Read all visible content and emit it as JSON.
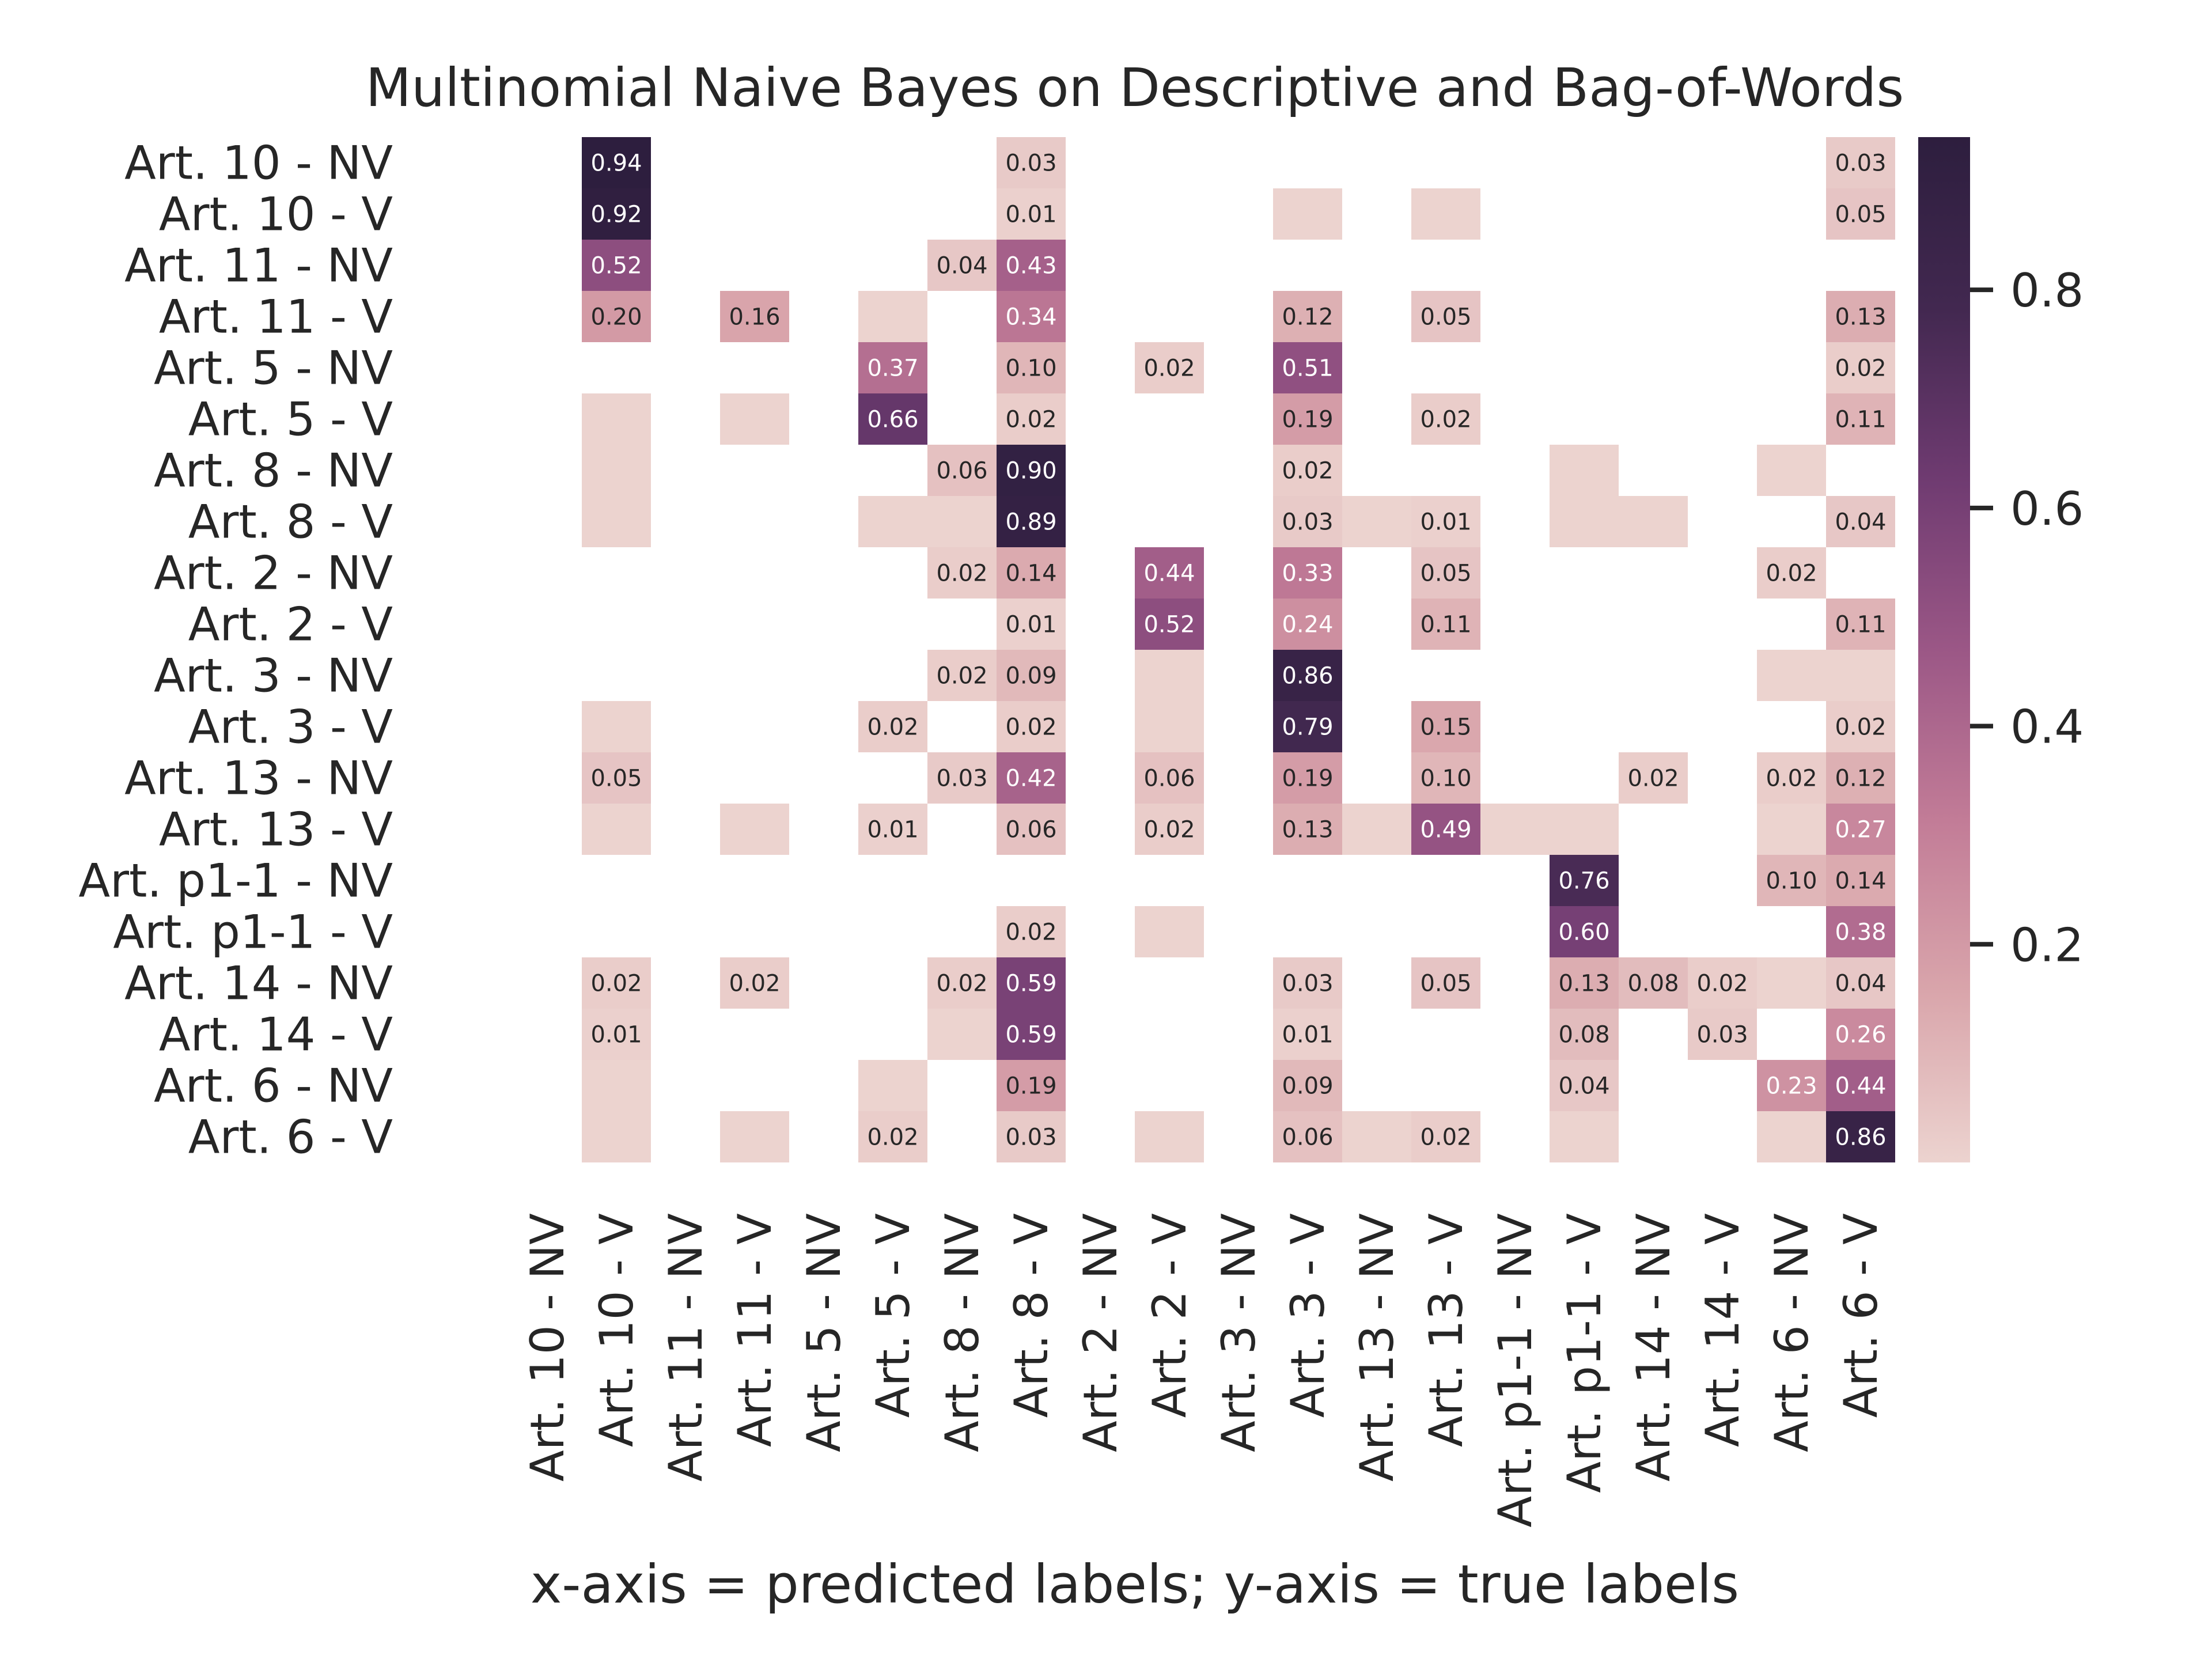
{
  "chart_data": {
    "type": "heatmap",
    "title": "Multinomial Naive Bayes on Descriptive and Bag-of-Words",
    "xlabel": "x-axis = predicted labels; y-axis = true labels",
    "ylabel": "",
    "x_categories": [
      "Art. 10 - NV",
      "Art. 10 - V",
      "Art. 11 - NV",
      "Art. 11 - V",
      "Art. 5 - NV",
      "Art. 5 - V",
      "Art. 8 - NV",
      "Art. 8 - V",
      "Art. 2 - NV",
      "Art. 2 - V",
      "Art. 3 - NV",
      "Art. 3 - V",
      "Art. 13 - NV",
      "Art. 13 - V",
      "Art. p1-1 - NV",
      "Art. p1-1 - V",
      "Art. 14 - NV",
      "Art. 14 - V",
      "Art. 6 - NV",
      "Art. 6 - V"
    ],
    "y_categories": [
      "Art. 10 - NV",
      "Art. 10 - V",
      "Art. 11 - NV",
      "Art. 11 - V",
      "Art. 5 - NV",
      "Art. 5 - V",
      "Art. 8 - NV",
      "Art. 8 - V",
      "Art. 2 - NV",
      "Art. 2 - V",
      "Art. 3 - NV",
      "Art. 3 - V",
      "Art. 13 - NV",
      "Art. 13 - V",
      "Art. p1-1 - NV",
      "Art. p1-1 - V",
      "Art. 14 - NV",
      "Art. 14 - V",
      "Art. 6 - NV",
      "Art. 6 - V"
    ],
    "cells": [
      {
        "row": 0,
        "col": 1,
        "value": 0.94,
        "label": "0.94"
      },
      {
        "row": 0,
        "col": 7,
        "value": 0.03,
        "label": "0.03"
      },
      {
        "row": 0,
        "col": 19,
        "value": 0.03,
        "label": "0.03"
      },
      {
        "row": 1,
        "col": 1,
        "value": 0.92,
        "label": "0.92"
      },
      {
        "row": 1,
        "col": 7,
        "value": 0.01,
        "label": "0.01"
      },
      {
        "row": 1,
        "col": 11,
        "value": 0.0
      },
      {
        "row": 1,
        "col": 13,
        "value": 0.0
      },
      {
        "row": 1,
        "col": 19,
        "value": 0.05,
        "label": "0.05"
      },
      {
        "row": 2,
        "col": 1,
        "value": 0.52,
        "label": "0.52"
      },
      {
        "row": 2,
        "col": 6,
        "value": 0.04,
        "label": "0.04"
      },
      {
        "row": 2,
        "col": 7,
        "value": 0.43,
        "label": "0.43"
      },
      {
        "row": 3,
        "col": 1,
        "value": 0.2,
        "label": "0.20"
      },
      {
        "row": 3,
        "col": 3,
        "value": 0.16,
        "label": "0.16"
      },
      {
        "row": 3,
        "col": 5,
        "value": 0.0
      },
      {
        "row": 3,
        "col": 7,
        "value": 0.34,
        "label": "0.34"
      },
      {
        "row": 3,
        "col": 11,
        "value": 0.12,
        "label": "0.12"
      },
      {
        "row": 3,
        "col": 13,
        "value": 0.05,
        "label": "0.05"
      },
      {
        "row": 3,
        "col": 19,
        "value": 0.13,
        "label": "0.13"
      },
      {
        "row": 4,
        "col": 5,
        "value": 0.37,
        "label": "0.37"
      },
      {
        "row": 4,
        "col": 7,
        "value": 0.1,
        "label": "0.10"
      },
      {
        "row": 4,
        "col": 9,
        "value": 0.02,
        "label": "0.02"
      },
      {
        "row": 4,
        "col": 11,
        "value": 0.51,
        "label": "0.51"
      },
      {
        "row": 4,
        "col": 19,
        "value": 0.02,
        "label": "0.02"
      },
      {
        "row": 5,
        "col": 1,
        "value": 0.0
      },
      {
        "row": 5,
        "col": 3,
        "value": 0.0
      },
      {
        "row": 5,
        "col": 5,
        "value": 0.66,
        "label": "0.66"
      },
      {
        "row": 5,
        "col": 7,
        "value": 0.02,
        "label": "0.02"
      },
      {
        "row": 5,
        "col": 11,
        "value": 0.19,
        "label": "0.19"
      },
      {
        "row": 5,
        "col": 13,
        "value": 0.02,
        "label": "0.02"
      },
      {
        "row": 5,
        "col": 19,
        "value": 0.11,
        "label": "0.11"
      },
      {
        "row": 6,
        "col": 1,
        "value": 0.0
      },
      {
        "row": 6,
        "col": 6,
        "value": 0.06,
        "label": "0.06"
      },
      {
        "row": 6,
        "col": 7,
        "value": 0.9,
        "label": "0.90"
      },
      {
        "row": 6,
        "col": 11,
        "value": 0.02,
        "label": "0.02"
      },
      {
        "row": 6,
        "col": 15,
        "value": 0.0
      },
      {
        "row": 6,
        "col": 18,
        "value": 0.0
      },
      {
        "row": 7,
        "col": 1,
        "value": 0.0
      },
      {
        "row": 7,
        "col": 5,
        "value": 0.0
      },
      {
        "row": 7,
        "col": 6,
        "value": 0.0
      },
      {
        "row": 7,
        "col": 7,
        "value": 0.89,
        "label": "0.89"
      },
      {
        "row": 7,
        "col": 11,
        "value": 0.03,
        "label": "0.03"
      },
      {
        "row": 7,
        "col": 12,
        "value": 0.0
      },
      {
        "row": 7,
        "col": 13,
        "value": 0.01,
        "label": "0.01"
      },
      {
        "row": 7,
        "col": 15,
        "value": 0.0
      },
      {
        "row": 7,
        "col": 16,
        "value": 0.0
      },
      {
        "row": 7,
        "col": 19,
        "value": 0.04,
        "label": "0.04"
      },
      {
        "row": 8,
        "col": 6,
        "value": 0.02,
        "label": "0.02"
      },
      {
        "row": 8,
        "col": 7,
        "value": 0.14,
        "label": "0.14"
      },
      {
        "row": 8,
        "col": 9,
        "value": 0.44,
        "label": "0.44"
      },
      {
        "row": 8,
        "col": 11,
        "value": 0.33,
        "label": "0.33"
      },
      {
        "row": 8,
        "col": 13,
        "value": 0.05,
        "label": "0.05"
      },
      {
        "row": 8,
        "col": 18,
        "value": 0.02,
        "label": "0.02"
      },
      {
        "row": 9,
        "col": 7,
        "value": 0.01,
        "label": "0.01"
      },
      {
        "row": 9,
        "col": 9,
        "value": 0.52,
        "label": "0.52"
      },
      {
        "row": 9,
        "col": 11,
        "value": 0.24,
        "label": "0.24"
      },
      {
        "row": 9,
        "col": 13,
        "value": 0.11,
        "label": "0.11"
      },
      {
        "row": 9,
        "col": 19,
        "value": 0.11,
        "label": "0.11"
      },
      {
        "row": 10,
        "col": 6,
        "value": 0.02,
        "label": "0.02"
      },
      {
        "row": 10,
        "col": 7,
        "value": 0.09,
        "label": "0.09"
      },
      {
        "row": 10,
        "col": 9,
        "value": 0.0
      },
      {
        "row": 10,
        "col": 11,
        "value": 0.86,
        "label": "0.86"
      },
      {
        "row": 10,
        "col": 18,
        "value": 0.0
      },
      {
        "row": 10,
        "col": 19,
        "value": 0.0
      },
      {
        "row": 11,
        "col": 1,
        "value": 0.0
      },
      {
        "row": 11,
        "col": 5,
        "value": 0.02,
        "label": "0.02"
      },
      {
        "row": 11,
        "col": 7,
        "value": 0.02,
        "label": "0.02"
      },
      {
        "row": 11,
        "col": 9,
        "value": 0.0
      },
      {
        "row": 11,
        "col": 11,
        "value": 0.79,
        "label": "0.79"
      },
      {
        "row": 11,
        "col": 13,
        "value": 0.15,
        "label": "0.15"
      },
      {
        "row": 11,
        "col": 19,
        "value": 0.02,
        "label": "0.02"
      },
      {
        "row": 12,
        "col": 1,
        "value": 0.05,
        "label": "0.05"
      },
      {
        "row": 12,
        "col": 6,
        "value": 0.03,
        "label": "0.03"
      },
      {
        "row": 12,
        "col": 7,
        "value": 0.42,
        "label": "0.42"
      },
      {
        "row": 12,
        "col": 9,
        "value": 0.06,
        "label": "0.06"
      },
      {
        "row": 12,
        "col": 11,
        "value": 0.19,
        "label": "0.19"
      },
      {
        "row": 12,
        "col": 13,
        "value": 0.1,
        "label": "0.10"
      },
      {
        "row": 12,
        "col": 16,
        "value": 0.02,
        "label": "0.02"
      },
      {
        "row": 12,
        "col": 18,
        "value": 0.02,
        "label": "0.02"
      },
      {
        "row": 12,
        "col": 19,
        "value": 0.12,
        "label": "0.12"
      },
      {
        "row": 13,
        "col": 1,
        "value": 0.0
      },
      {
        "row": 13,
        "col": 3,
        "value": 0.0
      },
      {
        "row": 13,
        "col": 5,
        "value": 0.01,
        "label": "0.01"
      },
      {
        "row": 13,
        "col": 7,
        "value": 0.06,
        "label": "0.06"
      },
      {
        "row": 13,
        "col": 9,
        "value": 0.02,
        "label": "0.02"
      },
      {
        "row": 13,
        "col": 11,
        "value": 0.13,
        "label": "0.13"
      },
      {
        "row": 13,
        "col": 12,
        "value": 0.0
      },
      {
        "row": 13,
        "col": 13,
        "value": 0.49,
        "label": "0.49"
      },
      {
        "row": 13,
        "col": 14,
        "value": 0.0
      },
      {
        "row": 13,
        "col": 15,
        "value": 0.0
      },
      {
        "row": 13,
        "col": 18,
        "value": 0.0
      },
      {
        "row": 13,
        "col": 19,
        "value": 0.27,
        "label": "0.27"
      },
      {
        "row": 14,
        "col": 15,
        "value": 0.76,
        "label": "0.76"
      },
      {
        "row": 14,
        "col": 18,
        "value": 0.1,
        "label": "0.10"
      },
      {
        "row": 14,
        "col": 19,
        "value": 0.14,
        "label": "0.14"
      },
      {
        "row": 15,
        "col": 7,
        "value": 0.02,
        "label": "0.02"
      },
      {
        "row": 15,
        "col": 9,
        "value": 0.0
      },
      {
        "row": 15,
        "col": 15,
        "value": 0.6,
        "label": "0.60"
      },
      {
        "row": 15,
        "col": 19,
        "value": 0.38,
        "label": "0.38"
      },
      {
        "row": 16,
        "col": 1,
        "value": 0.02,
        "label": "0.02"
      },
      {
        "row": 16,
        "col": 3,
        "value": 0.02,
        "label": "0.02"
      },
      {
        "row": 16,
        "col": 6,
        "value": 0.02,
        "label": "0.02"
      },
      {
        "row": 16,
        "col": 7,
        "value": 0.59,
        "label": "0.59"
      },
      {
        "row": 16,
        "col": 11,
        "value": 0.03,
        "label": "0.03"
      },
      {
        "row": 16,
        "col": 13,
        "value": 0.05,
        "label": "0.05"
      },
      {
        "row": 16,
        "col": 15,
        "value": 0.13,
        "label": "0.13"
      },
      {
        "row": 16,
        "col": 16,
        "value": 0.08,
        "label": "0.08"
      },
      {
        "row": 16,
        "col": 17,
        "value": 0.02,
        "label": "0.02"
      },
      {
        "row": 16,
        "col": 18,
        "value": 0.0
      },
      {
        "row": 16,
        "col": 19,
        "value": 0.04,
        "label": "0.04"
      },
      {
        "row": 17,
        "col": 1,
        "value": 0.01,
        "label": "0.01"
      },
      {
        "row": 17,
        "col": 6,
        "value": 0.0
      },
      {
        "row": 17,
        "col": 7,
        "value": 0.59,
        "label": "0.59"
      },
      {
        "row": 17,
        "col": 11,
        "value": 0.01,
        "label": "0.01"
      },
      {
        "row": 17,
        "col": 15,
        "value": 0.08,
        "label": "0.08"
      },
      {
        "row": 17,
        "col": 17,
        "value": 0.03,
        "label": "0.03"
      },
      {
        "row": 17,
        "col": 19,
        "value": 0.26,
        "label": "0.26"
      },
      {
        "row": 18,
        "col": 1,
        "value": 0.0
      },
      {
        "row": 18,
        "col": 5,
        "value": 0.0
      },
      {
        "row": 18,
        "col": 7,
        "value": 0.19,
        "label": "0.19"
      },
      {
        "row": 18,
        "col": 11,
        "value": 0.09,
        "label": "0.09"
      },
      {
        "row": 18,
        "col": 15,
        "value": 0.04,
        "label": "0.04"
      },
      {
        "row": 18,
        "col": 18,
        "value": 0.23,
        "label": "0.23"
      },
      {
        "row": 18,
        "col": 19,
        "value": 0.44,
        "label": "0.44"
      },
      {
        "row": 19,
        "col": 1,
        "value": 0.0
      },
      {
        "row": 19,
        "col": 3,
        "value": 0.0
      },
      {
        "row": 19,
        "col": 5,
        "value": 0.02,
        "label": "0.02"
      },
      {
        "row": 19,
        "col": 7,
        "value": 0.03,
        "label": "0.03"
      },
      {
        "row": 19,
        "col": 9,
        "value": 0.0
      },
      {
        "row": 19,
        "col": 11,
        "value": 0.06,
        "label": "0.06"
      },
      {
        "row": 19,
        "col": 12,
        "value": 0.0
      },
      {
        "row": 19,
        "col": 13,
        "value": 0.02,
        "label": "0.02"
      },
      {
        "row": 19,
        "col": 15,
        "value": 0.0
      },
      {
        "row": 19,
        "col": 18,
        "value": 0.0
      },
      {
        "row": 19,
        "col": 19,
        "value": 0.86,
        "label": "0.86"
      }
    ],
    "colorbar": {
      "ticks": [
        0.2,
        0.4,
        0.6,
        0.8
      ],
      "tick_labels": [
        "0.2",
        "0.4",
        "0.6",
        "0.8"
      ],
      "range": [
        0.0,
        0.94
      ]
    },
    "colormap": [
      "#ecd3cf",
      "#d9a5ab",
      "#c27c97",
      "#9b5786",
      "#6f3b71",
      "#422850",
      "#2d1e3e"
    ],
    "grid": false
  }
}
